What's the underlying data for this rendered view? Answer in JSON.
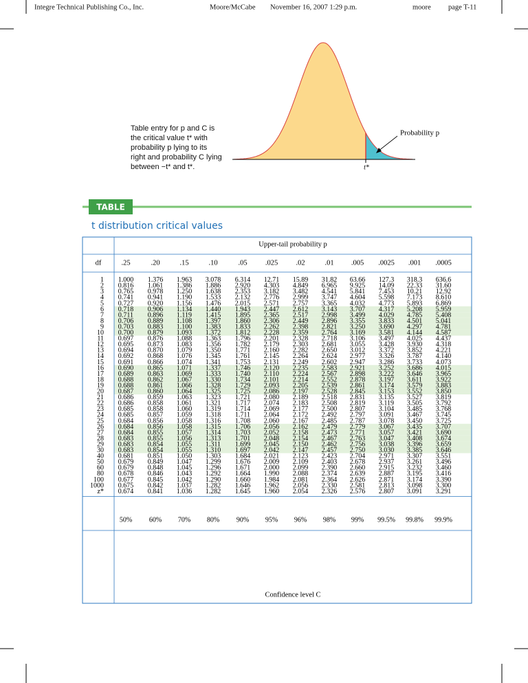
{
  "header": [
    "Integre Technical Publishing Co., Inc.",
    "Moore/McCabe",
    "November 16, 2007 1:29 p.m.",
    "moore",
    "page T-11"
  ],
  "figure": {
    "caption": [
      "Table entry for p and C is",
      "the critical value t* with",
      "probability p lying to its",
      "right and probability C lying",
      "between −t* and t*."
    ],
    "tail_label": "Probability p",
    "t_label": "t*"
  },
  "table": {
    "label": "TABLE",
    "title": "t distribution critical values",
    "upper_header": "Upper-tail probability p",
    "columns": [
      "df",
      ".25",
      ".20",
      ".15",
      ".10",
      ".05",
      ".025",
      ".02",
      ".01",
      ".005",
      ".0025",
      ".001",
      ".0005"
    ],
    "rows": [
      [
        "1",
        "1.000",
        "1.376",
        "1.963",
        "3.078",
        "6.314",
        "12.71",
        "15.89",
        "31.82",
        "63.66",
        "127.3",
        "318.3",
        "636.6"
      ],
      [
        "2",
        "0.816",
        "1.061",
        "1.386",
        "1.886",
        "2.920",
        "4.303",
        "4.849",
        "6.965",
        "9.925",
        "14.09",
        "22.33",
        "31.60"
      ],
      [
        "3",
        "0.765",
        "0.978",
        "1.250",
        "1.638",
        "2.353",
        "3.182",
        "3.482",
        "4.541",
        "5.841",
        "7.453",
        "10.21",
        "12.92"
      ],
      [
        "4",
        "0.741",
        "0.941",
        "1.190",
        "1.533",
        "2.132",
        "2.776",
        "2.999",
        "3.747",
        "4.604",
        "5.598",
        "7.173",
        "8.610"
      ],
      [
        "5",
        "0.727",
        "0.920",
        "1.156",
        "1.476",
        "2.015",
        "2.571",
        "2.757",
        "3.365",
        "4.032",
        "4.773",
        "5.893",
        "6.869"
      ],
      [
        "6",
        "0.718",
        "0.906",
        "1.134",
        "1.440",
        "1.943",
        "2.447",
        "2.612",
        "3.143",
        "3.707",
        "4.317",
        "5.208",
        "5.959"
      ],
      [
        "7",
        "0.711",
        "0.896",
        "1.119",
        "1.415",
        "1.895",
        "2.365",
        "2.517",
        "2.998",
        "3.499",
        "4.029",
        "4.785",
        "5.408"
      ],
      [
        "8",
        "0.706",
        "0.889",
        "1.108",
        "1.397",
        "1.860",
        "2.306",
        "2.449",
        "2.896",
        "3.355",
        "3.833",
        "4.501",
        "5.041"
      ],
      [
        "9",
        "0.703",
        "0.883",
        "1.100",
        "1.383",
        "1.833",
        "2.262",
        "2.398",
        "2.821",
        "3.250",
        "3.690",
        "4.297",
        "4.781"
      ],
      [
        "10",
        "0.700",
        "0.879",
        "1.093",
        "1.372",
        "1.812",
        "2.228",
        "2.359",
        "2.764",
        "3.169",
        "3.581",
        "4.144",
        "4.587"
      ],
      [
        "11",
        "0.697",
        "0.876",
        "1.088",
        "1.363",
        "1.796",
        "2.201",
        "2.328",
        "2.718",
        "3.106",
        "3.497",
        "4.025",
        "4.437"
      ],
      [
        "12",
        "0.695",
        "0.873",
        "1.083",
        "1.356",
        "1.782",
        "2.179",
        "2.303",
        "2.681",
        "3.055",
        "3.428",
        "3.930",
        "4.318"
      ],
      [
        "13",
        "0.694",
        "0.870",
        "1.079",
        "1.350",
        "1.771",
        "2.160",
        "2.282",
        "2.650",
        "3.012",
        "3.372",
        "3.852",
        "4.221"
      ],
      [
        "14",
        "0.692",
        "0.868",
        "1.076",
        "1.345",
        "1.761",
        "2.145",
        "2.264",
        "2.624",
        "2.977",
        "3.326",
        "3.787",
        "4.140"
      ],
      [
        "15",
        "0.691",
        "0.866",
        "1.074",
        "1.341",
        "1.753",
        "2.131",
        "2.249",
        "2.602",
        "2.947",
        "3.286",
        "3.733",
        "4.073"
      ],
      [
        "16",
        "0.690",
        "0.865",
        "1.071",
        "1.337",
        "1.746",
        "2.120",
        "2.235",
        "2.583",
        "2.921",
        "3.252",
        "3.686",
        "4.015"
      ],
      [
        "17",
        "0.689",
        "0.863",
        "1.069",
        "1.333",
        "1.740",
        "2.110",
        "2.224",
        "2.567",
        "2.898",
        "3.222",
        "3.646",
        "3.965"
      ],
      [
        "18",
        "0.688",
        "0.862",
        "1.067",
        "1.330",
        "1.734",
        "2.101",
        "2.214",
        "2.552",
        "2.878",
        "3.197",
        "3.611",
        "3.922"
      ],
      [
        "19",
        "0.688",
        "0.861",
        "1.066",
        "1.328",
        "1.729",
        "2.093",
        "2.205",
        "2.539",
        "2.861",
        "3.174",
        "3.579",
        "3.883"
      ],
      [
        "20",
        "0.687",
        "0.860",
        "1.064",
        "1.325",
        "1.725",
        "2.086",
        "2.197",
        "2.528",
        "2.845",
        "3.153",
        "3.552",
        "3.850"
      ],
      [
        "21",
        "0.686",
        "0.859",
        "1.063",
        "1.323",
        "1.721",
        "2.080",
        "2.189",
        "2.518",
        "2.831",
        "3.135",
        "3.527",
        "3.819"
      ],
      [
        "22",
        "0.686",
        "0.858",
        "1.061",
        "1.321",
        "1.717",
        "2.074",
        "2.183",
        "2.508",
        "2.819",
        "3.119",
        "3.505",
        "3.792"
      ],
      [
        "23",
        "0.685",
        "0.858",
        "1.060",
        "1.319",
        "1.714",
        "2.069",
        "2.177",
        "2.500",
        "2.807",
        "3.104",
        "3.485",
        "3.768"
      ],
      [
        "24",
        "0.685",
        "0.857",
        "1.059",
        "1.318",
        "1.711",
        "2.064",
        "2.172",
        "2.492",
        "2.797",
        "3.091",
        "3.467",
        "3.745"
      ],
      [
        "25",
        "0.684",
        "0.856",
        "1.058",
        "1.316",
        "1.708",
        "2.060",
        "2.167",
        "2.485",
        "2.787",
        "3.078",
        "3.450",
        "3.725"
      ],
      [
        "26",
        "0.684",
        "0.856",
        "1.058",
        "1.315",
        "1.706",
        "2.056",
        "2.162",
        "2.479",
        "2.779",
        "3.067",
        "3.435",
        "3.707"
      ],
      [
        "27",
        "0.684",
        "0.855",
        "1.057",
        "1.314",
        "1.703",
        "2.052",
        "2.158",
        "2.473",
        "2.771",
        "3.057",
        "3.421",
        "3.690"
      ],
      [
        "28",
        "0.683",
        "0.855",
        "1.056",
        "1.313",
        "1.701",
        "2.048",
        "2.154",
        "2.467",
        "2.763",
        "3.047",
        "3.408",
        "3.674"
      ],
      [
        "29",
        "0.683",
        "0.854",
        "1.055",
        "1.311",
        "1.699",
        "2.045",
        "2.150",
        "2.462",
        "2.756",
        "3.038",
        "3.396",
        "3.659"
      ],
      [
        "30",
        "0.683",
        "0.854",
        "1.055",
        "1.310",
        "1.697",
        "2.042",
        "2.147",
        "2.457",
        "2.750",
        "3.030",
        "3.385",
        "3.646"
      ],
      [
        "40",
        "0.681",
        "0.851",
        "1.050",
        "1.303",
        "1.684",
        "2.021",
        "2.123",
        "2.423",
        "2.704",
        "2.971",
        "3.307",
        "3.551"
      ],
      [
        "50",
        "0.679",
        "0.849",
        "1.047",
        "1.299",
        "1.676",
        "2.009",
        "2.109",
        "2.403",
        "2.678",
        "2.937",
        "3.261",
        "3.496"
      ],
      [
        "60",
        "0.679",
        "0.848",
        "1.045",
        "1.296",
        "1.671",
        "2.000",
        "2.099",
        "2.390",
        "2.660",
        "2.915",
        "3.232",
        "3.460"
      ],
      [
        "80",
        "0.678",
        "0.846",
        "1.043",
        "1.292",
        "1.664",
        "1.990",
        "2.088",
        "2.374",
        "2.639",
        "2.887",
        "3.195",
        "3.416"
      ],
      [
        "100",
        "0.677",
        "0.845",
        "1.042",
        "1.290",
        "1.660",
        "1.984",
        "2.081",
        "2.364",
        "2.626",
        "2.871",
        "3.174",
        "3.390"
      ],
      [
        "1000",
        "0.675",
        "0.842",
        "1.037",
        "1.282",
        "1.646",
        "1.962",
        "2.056",
        "2.330",
        "2.581",
        "2.813",
        "3.098",
        "3.300"
      ],
      [
        "z*",
        "0.674",
        "0.841",
        "1.036",
        "1.282",
        "1.645",
        "1.960",
        "2.054",
        "2.326",
        "2.576",
        "2.807",
        "3.091",
        "3.291"
      ]
    ],
    "confidence": [
      "50%",
      "60%",
      "70%",
      "80%",
      "90%",
      "95%",
      "96%",
      "98%",
      "99%",
      "99.5%",
      "99.8%",
      "99.9%"
    ],
    "lower_header": "Confidence level C"
  }
}
